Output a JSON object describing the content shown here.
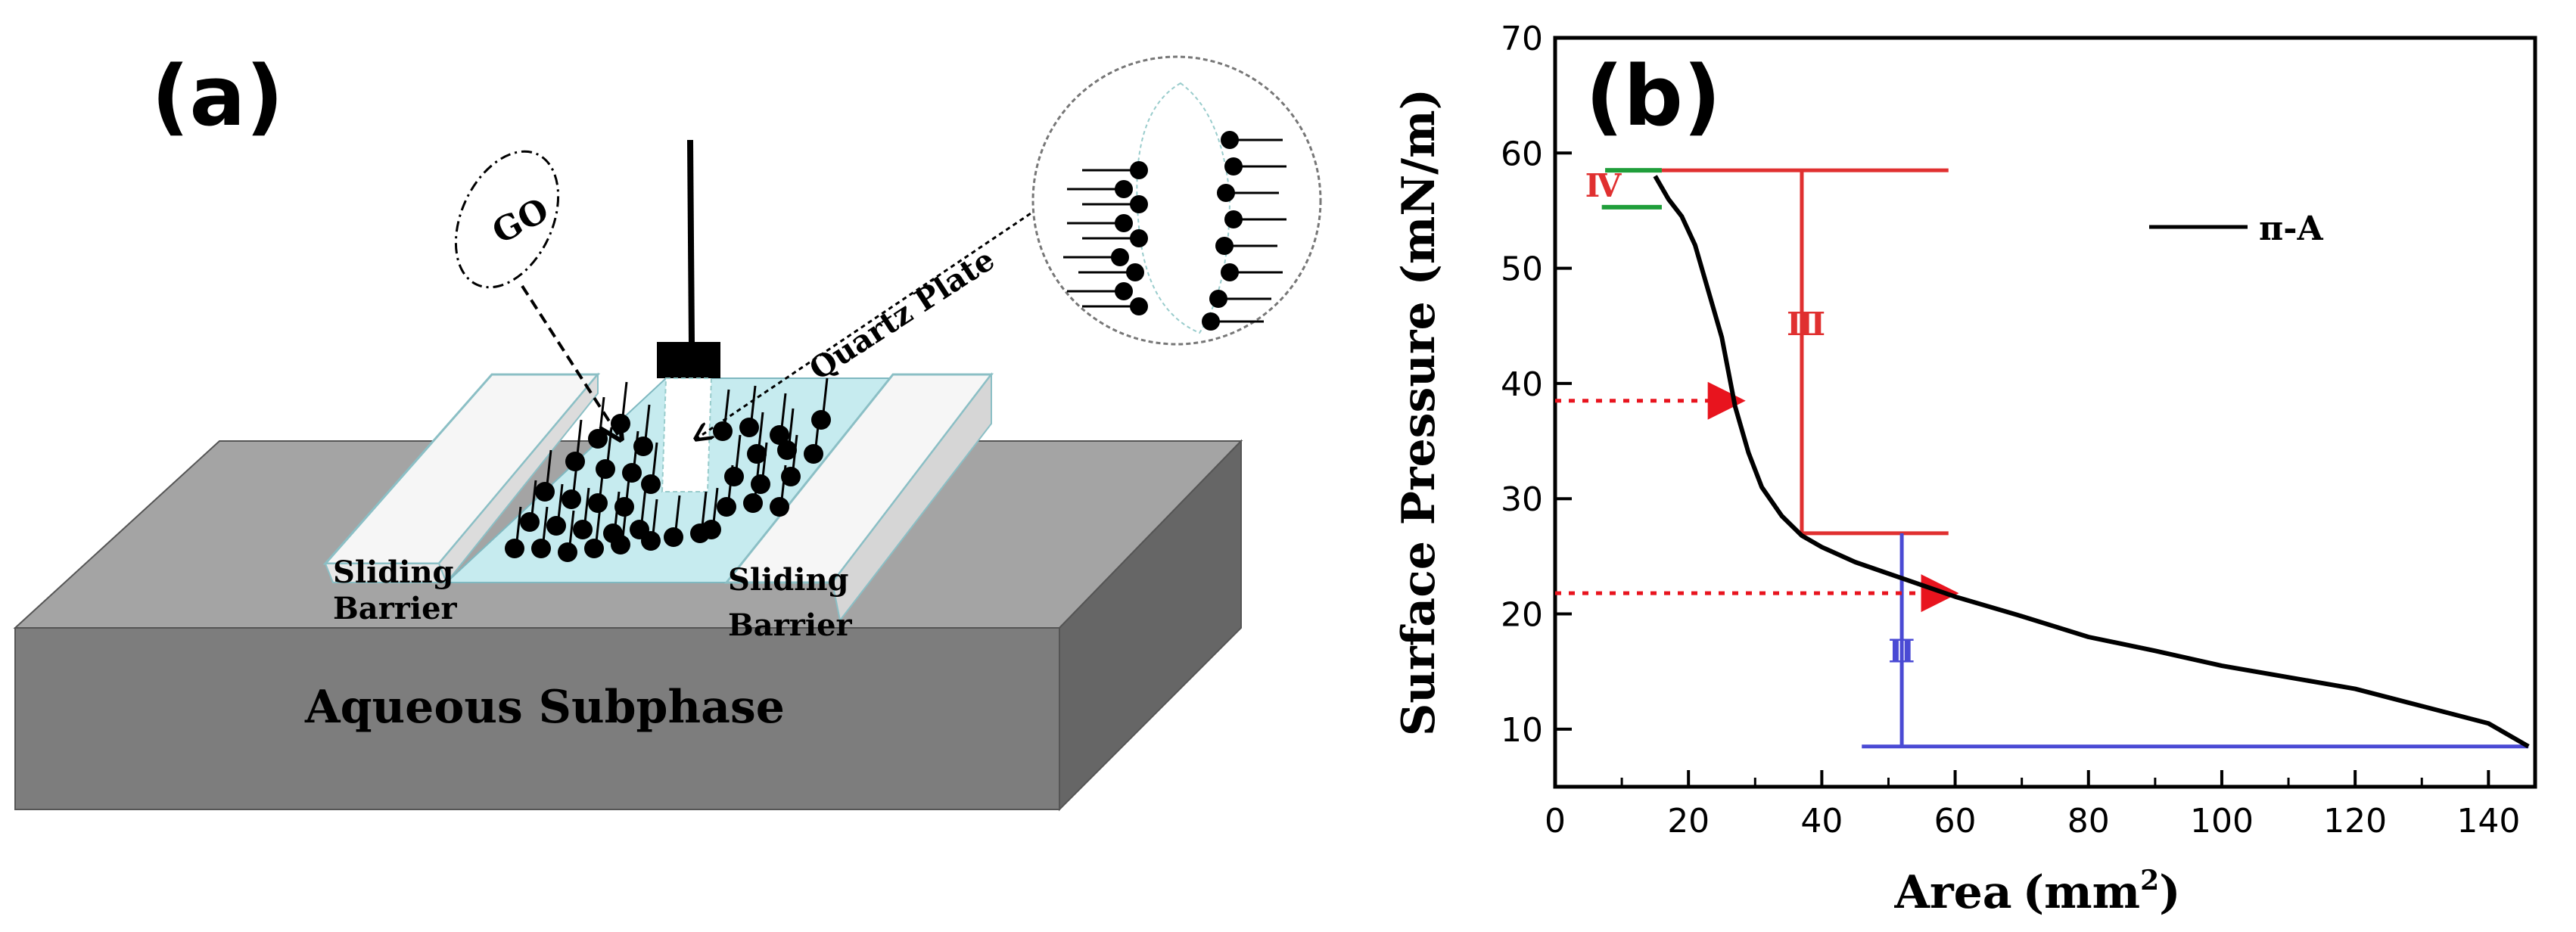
{
  "panel_a": {
    "label": "(a)",
    "go_label": "GO",
    "quartz_label": "Quartz Plate",
    "barrier_left": [
      "Sliding",
      "Barrier"
    ],
    "barrier_right": [
      "Sliding",
      "Barrier"
    ],
    "subphase_label": "Aqueous Subphase"
  },
  "chart_data": {
    "type": "line",
    "panel_label": "(b)",
    "xlabel": "Area",
    "xunit": "(mm",
    "xunit_sup": "2",
    "xunit_close": ")",
    "ylabel": "Surface Pressure (mN/m)",
    "xlim": [
      0,
      147
    ],
    "ylim": [
      5,
      70
    ],
    "xticks": [
      0,
      20,
      40,
      60,
      80,
      100,
      120,
      140
    ],
    "yticks": [
      10,
      20,
      30,
      40,
      50,
      60,
      70
    ],
    "legend": "π-A",
    "legend_position": "top-right",
    "series": [
      {
        "name": "π-A",
        "x": [
          146,
          140,
          130,
          120,
          110,
          100,
          90,
          80,
          70,
          60,
          55,
          50,
          45,
          40,
          37,
          34,
          31,
          29,
          27,
          26,
          25,
          23,
          21,
          19,
          17,
          15.5,
          15
        ],
        "y": [
          8.5,
          10.5,
          12,
          13.5,
          14.5,
          15.5,
          16.8,
          18,
          19.8,
          21.5,
          22.5,
          23.5,
          24.5,
          25.8,
          26.8,
          28.5,
          31,
          34,
          38,
          41,
          44,
          48,
          52,
          54.5,
          56,
          57.5,
          58
        ]
      }
    ],
    "phases": [
      {
        "label": "Ⅳ",
        "color": "#e03030",
        "y_top": 58.5,
        "y_bottom": 55.3,
        "x_from": 7,
        "x_to": 16
      },
      {
        "label": "Ⅲ",
        "color": "#e03030",
        "y_top": 58.5,
        "y_bottom": 27,
        "x_bar": 37,
        "x_left": 0,
        "x_right": 59
      },
      {
        "label": "Ⅱ",
        "color": "#4a4ad4",
        "y_top": 27,
        "y_bottom": 8.5,
        "x_bar": 52,
        "x_left": 46,
        "x_right": 146
      }
    ],
    "arrows": [
      {
        "y": 38.5,
        "x_to": 28
      },
      {
        "y": 21.8,
        "x_to": 60
      }
    ]
  }
}
